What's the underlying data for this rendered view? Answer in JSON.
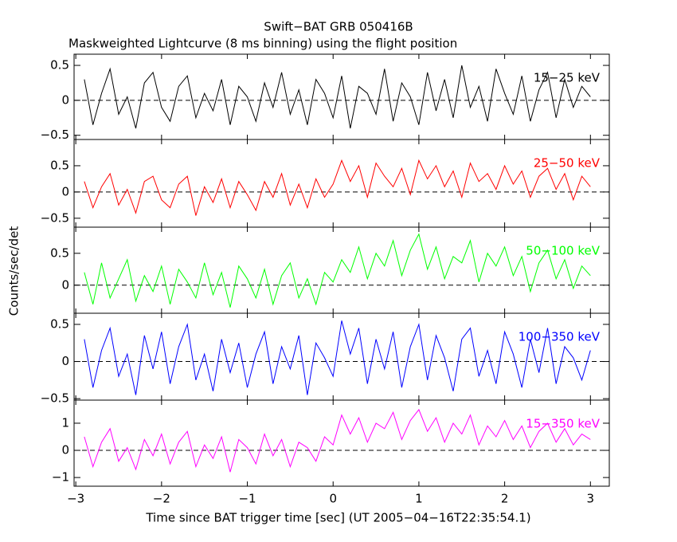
{
  "chart_data": [
    {
      "type": "line",
      "title": "Swift−BAT GRB 050416B",
      "subtitle": "Maskweighted Lightcurve (8 ms binning) using the flight position",
      "ylabel": "Counts/sec/det",
      "label": "15−25 keV",
      "color": "#000000",
      "x": [
        -2.9,
        -2.8,
        -2.7,
        -2.6,
        -2.5,
        -2.4,
        -2.3,
        -2.2,
        -2.1,
        -2.0,
        -1.9,
        -1.8,
        -1.7,
        -1.6,
        -1.5,
        -1.4,
        -1.3,
        -1.2,
        -1.1,
        -1.0,
        -0.9,
        -0.8,
        -0.7,
        -0.6,
        -0.5,
        -0.4,
        -0.3,
        -0.2,
        -0.1,
        0.0,
        0.1,
        0.2,
        0.3,
        0.4,
        0.5,
        0.6,
        0.7,
        0.8,
        0.9,
        1.0,
        1.1,
        1.2,
        1.3,
        1.4,
        1.5,
        1.6,
        1.7,
        1.8,
        1.9,
        2.0,
        2.1,
        2.2,
        2.3,
        2.4,
        2.5,
        2.6,
        2.7,
        2.8,
        2.9,
        3.0
      ],
      "values": [
        0.3,
        -0.35,
        0.1,
        0.45,
        -0.2,
        0.05,
        -0.4,
        0.25,
        0.4,
        -0.1,
        -0.3,
        0.2,
        0.35,
        -0.25,
        0.1,
        -0.15,
        0.3,
        -0.35,
        0.2,
        0.05,
        -0.3,
        0.25,
        -0.1,
        0.4,
        -0.2,
        0.15,
        -0.35,
        0.3,
        0.1,
        -0.25,
        0.35,
        -0.4,
        0.2,
        0.1,
        -0.2,
        0.45,
        -0.3,
        0.25,
        0.05,
        -0.35,
        0.4,
        -0.15,
        0.3,
        -0.25,
        0.5,
        -0.1,
        0.2,
        -0.3,
        0.45,
        0.1,
        -0.2,
        0.35,
        -0.3,
        0.15,
        0.4,
        -0.25,
        0.3,
        -0.1,
        0.2,
        0.05
      ],
      "xlim": [
        -3.02,
        3.22
      ],
      "xticks": [
        {
          "value": -3,
          "label": "−3"
        },
        {
          "value": -2,
          "label": "−2"
        },
        {
          "value": -1,
          "label": "−1"
        },
        0,
        1,
        2,
        3
      ],
      "ylim": [
        -0.56,
        0.66
      ],
      "yticks": [
        {
          "value": -0.5,
          "label": "−0.5"
        },
        0,
        0.5
      ]
    },
    {
      "type": "line",
      "label": "25−50 keV",
      "color": "#ff0000",
      "x": [
        -2.9,
        -2.8,
        -2.7,
        -2.6,
        -2.5,
        -2.4,
        -2.3,
        -2.2,
        -2.1,
        -2.0,
        -1.9,
        -1.8,
        -1.7,
        -1.6,
        -1.5,
        -1.4,
        -1.3,
        -1.2,
        -1.1,
        -1.0,
        -0.9,
        -0.8,
        -0.7,
        -0.6,
        -0.5,
        -0.4,
        -0.3,
        -0.2,
        -0.1,
        0.0,
        0.1,
        0.2,
        0.3,
        0.4,
        0.5,
        0.6,
        0.7,
        0.8,
        0.9,
        1.0,
        1.1,
        1.2,
        1.3,
        1.4,
        1.5,
        1.6,
        1.7,
        1.8,
        1.9,
        2.0,
        2.1,
        2.2,
        2.3,
        2.4,
        2.5,
        2.6,
        2.7,
        2.8,
        2.9,
        3.0
      ],
      "values": [
        0.2,
        -0.3,
        0.1,
        0.35,
        -0.25,
        0.05,
        -0.4,
        0.2,
        0.3,
        -0.15,
        -0.3,
        0.15,
        0.3,
        -0.45,
        0.1,
        -0.2,
        0.25,
        -0.3,
        0.2,
        -0.05,
        -0.35,
        0.2,
        -0.1,
        0.35,
        -0.25,
        0.15,
        -0.3,
        0.25,
        -0.1,
        0.15,
        0.6,
        0.2,
        0.5,
        -0.1,
        0.55,
        0.3,
        0.1,
        0.45,
        -0.05,
        0.6,
        0.25,
        0.5,
        0.1,
        0.4,
        -0.1,
        0.55,
        0.2,
        0.35,
        0.05,
        0.5,
        0.15,
        0.4,
        -0.1,
        0.3,
        0.45,
        0.05,
        0.35,
        -0.15,
        0.3,
        0.1
      ],
      "xlim": [
        -3.02,
        3.22
      ],
      "xticks": [
        {
          "value": -3,
          "label": "−3"
        },
        {
          "value": -2,
          "label": "−2"
        },
        {
          "value": -1,
          "label": "−1"
        },
        0,
        1,
        2,
        3
      ],
      "ylim": [
        -0.67,
        1.0
      ],
      "yticks": [
        {
          "value": -0.5,
          "label": "−0.5"
        },
        0,
        0.5
      ]
    },
    {
      "type": "line",
      "label": "50−100 keV",
      "color": "#00ff00",
      "x": [
        -2.9,
        -2.8,
        -2.7,
        -2.6,
        -2.5,
        -2.4,
        -2.3,
        -2.2,
        -2.1,
        -2.0,
        -1.9,
        -1.8,
        -1.7,
        -1.6,
        -1.5,
        -1.4,
        -1.3,
        -1.2,
        -1.1,
        -1.0,
        -0.9,
        -0.8,
        -0.7,
        -0.6,
        -0.5,
        -0.4,
        -0.3,
        -0.2,
        -0.1,
        0.0,
        0.1,
        0.2,
        0.3,
        0.4,
        0.5,
        0.6,
        0.7,
        0.8,
        0.9,
        1.0,
        1.1,
        1.2,
        1.3,
        1.4,
        1.5,
        1.6,
        1.7,
        1.8,
        1.9,
        2.0,
        2.1,
        2.2,
        2.3,
        2.4,
        2.5,
        2.6,
        2.7,
        2.8,
        2.9,
        3.0
      ],
      "values": [
        0.2,
        -0.3,
        0.35,
        -0.2,
        0.1,
        0.4,
        -0.25,
        0.15,
        -0.1,
        0.3,
        -0.3,
        0.25,
        0.05,
        -0.2,
        0.35,
        -0.15,
        0.2,
        -0.35,
        0.3,
        0.1,
        -0.2,
        0.25,
        -0.3,
        0.15,
        0.35,
        -0.2,
        0.1,
        -0.3,
        0.2,
        0.05,
        0.4,
        0.2,
        0.6,
        0.1,
        0.5,
        0.3,
        0.7,
        0.15,
        0.55,
        0.8,
        0.25,
        0.6,
        0.1,
        0.45,
        0.35,
        0.7,
        0.05,
        0.5,
        0.3,
        0.6,
        0.15,
        0.45,
        -0.1,
        0.35,
        0.55,
        0.1,
        0.4,
        -0.05,
        0.3,
        0.15
      ],
      "xlim": [
        -3.02,
        3.22
      ],
      "xticks": [
        {
          "value": -3,
          "label": "−3"
        },
        {
          "value": -2,
          "label": "−2"
        },
        {
          "value": -1,
          "label": "−1"
        },
        0,
        1,
        2,
        3
      ],
      "ylim": [
        -0.44,
        0.91
      ],
      "yticks": [
        0,
        0.5
      ]
    },
    {
      "type": "line",
      "label": "100−350 keV",
      "color": "#0000ff",
      "x": [
        -2.9,
        -2.8,
        -2.7,
        -2.6,
        -2.5,
        -2.4,
        -2.3,
        -2.2,
        -2.1,
        -2.0,
        -1.9,
        -1.8,
        -1.7,
        -1.6,
        -1.5,
        -1.4,
        -1.3,
        -1.2,
        -1.1,
        -1.0,
        -0.9,
        -0.8,
        -0.7,
        -0.6,
        -0.5,
        -0.4,
        -0.3,
        -0.2,
        -0.1,
        0.0,
        0.1,
        0.2,
        0.3,
        0.4,
        0.5,
        0.6,
        0.7,
        0.8,
        0.9,
        1.0,
        1.1,
        1.2,
        1.3,
        1.4,
        1.5,
        1.6,
        1.7,
        1.8,
        1.9,
        2.0,
        2.1,
        2.2,
        2.3,
        2.4,
        2.5,
        2.6,
        2.7,
        2.8,
        2.9,
        3.0
      ],
      "values": [
        0.3,
        -0.35,
        0.15,
        0.45,
        -0.2,
        0.1,
        -0.45,
        0.35,
        -0.1,
        0.4,
        -0.3,
        0.2,
        0.5,
        -0.25,
        0.1,
        -0.4,
        0.3,
        -0.15,
        0.25,
        -0.35,
        0.1,
        0.4,
        -0.3,
        0.2,
        -0.1,
        0.35,
        -0.45,
        0.25,
        0.05,
        -0.2,
        0.55,
        0.1,
        0.45,
        -0.3,
        0.3,
        -0.1,
        0.4,
        -0.35,
        0.2,
        0.5,
        -0.25,
        0.35,
        0.05,
        -0.4,
        0.3,
        0.45,
        -0.2,
        0.15,
        -0.3,
        0.4,
        0.1,
        -0.35,
        0.3,
        -0.15,
        0.45,
        -0.3,
        0.2,
        0.05,
        -0.25,
        0.15
      ],
      "xlim": [
        -3.02,
        3.22
      ],
      "xticks": [
        {
          "value": -3,
          "label": "−3"
        },
        {
          "value": -2,
          "label": "−2"
        },
        {
          "value": -1,
          "label": "−1"
        },
        0,
        1,
        2,
        3
      ],
      "ylim": [
        -0.52,
        0.65
      ],
      "yticks": [
        {
          "value": -0.5,
          "label": "−0.5"
        },
        0,
        0.5
      ]
    },
    {
      "type": "line",
      "label": "15−350 keV",
      "color": "#ff00ff",
      "xlabel": "Time since BAT trigger time [sec] (UT 2005−04−16T22:35:54.1)",
      "x": [
        -2.9,
        -2.8,
        -2.7,
        -2.6,
        -2.5,
        -2.4,
        -2.3,
        -2.2,
        -2.1,
        -2.0,
        -1.9,
        -1.8,
        -1.7,
        -1.6,
        -1.5,
        -1.4,
        -1.3,
        -1.2,
        -1.1,
        -1.0,
        -0.9,
        -0.8,
        -0.7,
        -0.6,
        -0.5,
        -0.4,
        -0.3,
        -0.2,
        -0.1,
        0.0,
        0.1,
        0.2,
        0.3,
        0.4,
        0.5,
        0.6,
        0.7,
        0.8,
        0.9,
        1.0,
        1.1,
        1.2,
        1.3,
        1.4,
        1.5,
        1.6,
        1.7,
        1.8,
        1.9,
        2.0,
        2.1,
        2.2,
        2.3,
        2.4,
        2.5,
        2.6,
        2.7,
        2.8,
        2.9,
        3.0
      ],
      "values": [
        0.5,
        -0.6,
        0.3,
        0.8,
        -0.4,
        0.1,
        -0.7,
        0.4,
        -0.2,
        0.6,
        -0.5,
        0.3,
        0.7,
        -0.6,
        0.2,
        -0.3,
        0.5,
        -0.8,
        0.4,
        0.1,
        -0.5,
        0.6,
        -0.2,
        0.4,
        -0.6,
        0.3,
        0.1,
        -0.4,
        0.5,
        0.2,
        1.3,
        0.6,
        1.2,
        0.3,
        1.0,
        0.8,
        1.4,
        0.4,
        1.1,
        1.5,
        0.7,
        1.2,
        0.3,
        1.0,
        0.6,
        1.3,
        0.2,
        0.9,
        0.5,
        1.1,
        0.4,
        0.9,
        0.1,
        0.7,
        1.0,
        0.3,
        0.8,
        0.2,
        0.6,
        0.4
      ],
      "xlim": [
        -3.02,
        3.22
      ],
      "xticks": [
        {
          "value": -3,
          "label": "−3"
        },
        {
          "value": -2,
          "label": "−2"
        },
        {
          "value": -1,
          "label": "−1"
        },
        0,
        1,
        2,
        3
      ],
      "ylim": [
        -1.32,
        1.85
      ],
      "yticks": [
        {
          "value": -1,
          "label": "−1"
        },
        0,
        1
      ]
    }
  ]
}
